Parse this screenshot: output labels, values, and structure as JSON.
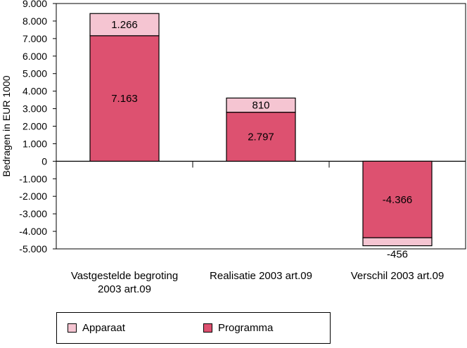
{
  "chart_data": {
    "type": "bar",
    "stacked": true,
    "ylabel": "Bedragen in EUR 1000",
    "ylim": [
      -5000,
      9000
    ],
    "ytick_step": 1000,
    "ytick_labels": [
      "9.000",
      "8.000",
      "7.000",
      "6.000",
      "5.000",
      "4.000",
      "3.000",
      "2.000",
      "1.000",
      "0",
      "-1.000",
      "-2.000",
      "-3.000",
      "-4.000",
      "-5.000"
    ],
    "categories": [
      [
        "Vastgestelde begroting",
        "2003 art.09"
      ],
      [
        "Realisatie 2003 art.09"
      ],
      [
        "Verschil 2003 art.09"
      ]
    ],
    "series": [
      {
        "name": "Programma",
        "color": "#dd5170",
        "values": [
          7163,
          2797,
          -4366
        ],
        "labels": [
          "7.163",
          "2.797",
          "-4.366"
        ]
      },
      {
        "name": "Apparaat",
        "color": "#f5c5d2",
        "values": [
          1266,
          810,
          -456
        ],
        "labels": [
          "1.266",
          "810",
          "-456"
        ]
      }
    ],
    "legend": {
      "position": "bottom",
      "entries": [
        {
          "label": "Apparaat",
          "color": "#f5c5d2"
        },
        {
          "label": "Programma",
          "color": "#dd5170"
        }
      ]
    }
  }
}
